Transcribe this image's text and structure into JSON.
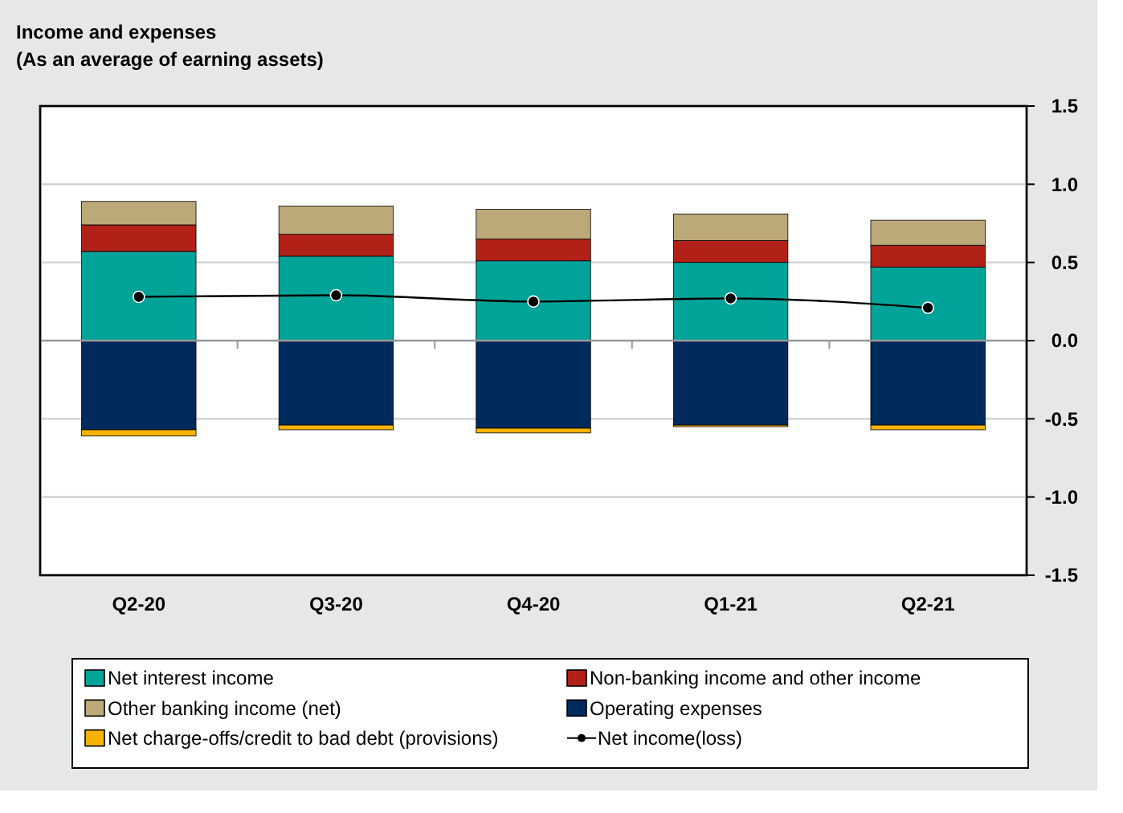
{
  "chart_data": {
    "type": "bar",
    "title": "Income and expenses",
    "subtitle": "(As an average of earning assets)",
    "categories": [
      "Q2-20",
      "Q3-20",
      "Q4-20",
      "Q1-21",
      "Q2-21"
    ],
    "stacked": true,
    "series": [
      {
        "name": "Net interest income",
        "color": "#00a398",
        "values": [
          0.57,
          0.54,
          0.51,
          0.5,
          0.47
        ]
      },
      {
        "name": "Non-banking income and other income",
        "color": "#b22118",
        "values": [
          0.17,
          0.14,
          0.14,
          0.14,
          0.14
        ]
      },
      {
        "name": "Other banking income (net)",
        "color": "#bca97a",
        "values": [
          0.15,
          0.18,
          0.19,
          0.17,
          0.16
        ]
      },
      {
        "name": "Operating expenses",
        "color": "#002a5c",
        "values": [
          -0.57,
          -0.54,
          -0.56,
          -0.54,
          -0.54
        ]
      },
      {
        "name": "Net charge-offs/credit to bad debt (provisions)",
        "color": "#f5b300",
        "values": [
          -0.04,
          -0.03,
          -0.03,
          -0.01,
          -0.03
        ]
      },
      {
        "name": "Net income(loss)",
        "type": "line",
        "color": "#000000",
        "marker": "circle",
        "values": [
          0.28,
          0.29,
          0.25,
          0.27,
          0.21
        ]
      }
    ],
    "ylim": [
      -1.5,
      1.5
    ],
    "yticks": [
      {
        "value": -1.5,
        "label": "-1.5"
      },
      {
        "value": -1,
        "label": "-1.0"
      },
      {
        "value": -0.5,
        "label": "-0.5"
      },
      {
        "value": 0,
        "label": "0.0"
      },
      {
        "value": 0.5,
        "label": "0.5"
      },
      {
        "value": 1,
        "label": "1.0"
      },
      {
        "value": 1.5,
        "label": "1.5"
      }
    ],
    "grid": "y",
    "legend": "bottom"
  }
}
